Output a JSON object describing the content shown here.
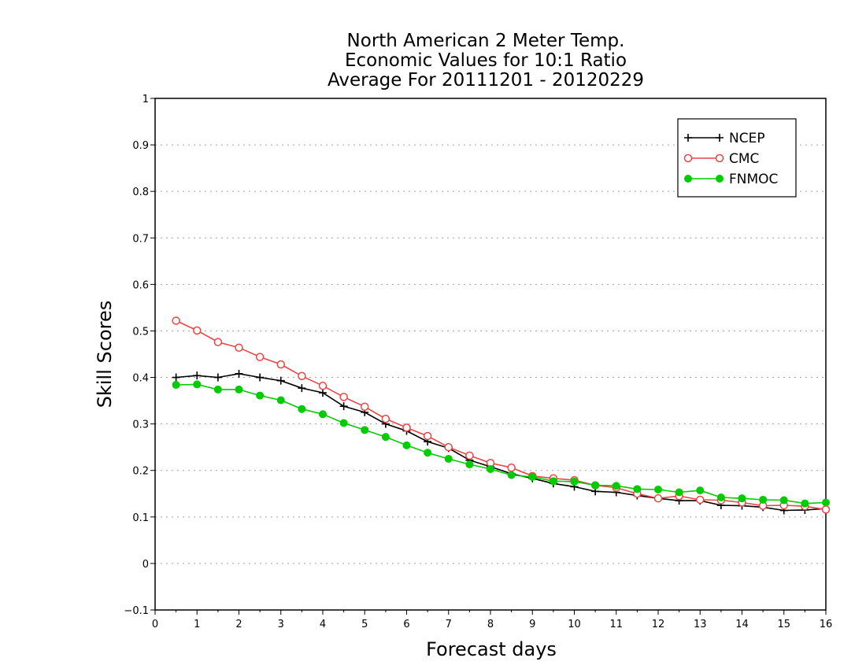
{
  "chart_data": {
    "type": "line",
    "title_lines": [
      "North American 2 Meter Temp.",
      "Economic Values for 10:1 Ratio",
      "Average For 20111201 - 20120229"
    ],
    "xlabel": "Forecast days",
    "ylabel": "Skill Scores",
    "xlim": [
      0,
      16
    ],
    "ylim": [
      -0.1,
      1
    ],
    "x_ticks": [
      "0",
      "1",
      "2",
      "3",
      "4",
      "5",
      "6",
      "7",
      "8",
      "9",
      "10",
      "11",
      "12",
      "13",
      "14",
      "15",
      "16"
    ],
    "y_ticks": [
      "−0.1",
      "0",
      "0.1",
      "0.2",
      "0.3",
      "0.4",
      "0.5",
      "0.6",
      "0.7",
      "0.8",
      "0.9",
      "1"
    ],
    "grid": "horizontal dotted",
    "legend_position": "top-right",
    "x": [
      0.5,
      1,
      1.5,
      2,
      2.5,
      3,
      3.5,
      4,
      4.5,
      5,
      5.5,
      6,
      6.5,
      7,
      7.5,
      8,
      8.5,
      9,
      9.5,
      10,
      10.5,
      11,
      11.5,
      12,
      12.5,
      13,
      13.5,
      14,
      14.5,
      15,
      15.5,
      16
    ],
    "series": [
      {
        "name": "NCEP",
        "color": "#000000",
        "marker": "plus",
        "values": [
          0.4,
          0.404,
          0.4,
          0.408,
          0.4,
          0.393,
          0.377,
          0.367,
          0.338,
          0.325,
          0.3,
          0.285,
          0.262,
          0.248,
          0.222,
          0.208,
          0.193,
          0.183,
          0.172,
          0.165,
          0.155,
          0.153,
          0.146,
          0.14,
          0.135,
          0.135,
          0.125,
          0.124,
          0.121,
          0.114,
          0.115,
          0.118
        ]
      },
      {
        "name": "CMC",
        "color": "#ee4444",
        "marker": "open-circle",
        "values": [
          0.522,
          0.501,
          0.476,
          0.464,
          0.444,
          0.428,
          0.403,
          0.382,
          0.358,
          0.337,
          0.311,
          0.292,
          0.274,
          0.25,
          0.232,
          0.216,
          0.206,
          0.188,
          0.183,
          0.179,
          0.168,
          0.163,
          0.15,
          0.14,
          0.145,
          0.137,
          0.136,
          0.131,
          0.124,
          0.125,
          0.123,
          0.116
        ]
      },
      {
        "name": "FNMOC",
        "color": "#00cc00",
        "marker": "filled-circle",
        "values": [
          0.384,
          0.385,
          0.374,
          0.374,
          0.361,
          0.351,
          0.332,
          0.321,
          0.302,
          0.287,
          0.272,
          0.254,
          0.238,
          0.225,
          0.213,
          0.203,
          0.19,
          0.186,
          0.177,
          0.176,
          0.168,
          0.167,
          0.16,
          0.159,
          0.153,
          0.157,
          0.142,
          0.14,
          0.137,
          0.136,
          0.129,
          0.131
        ]
      }
    ]
  }
}
